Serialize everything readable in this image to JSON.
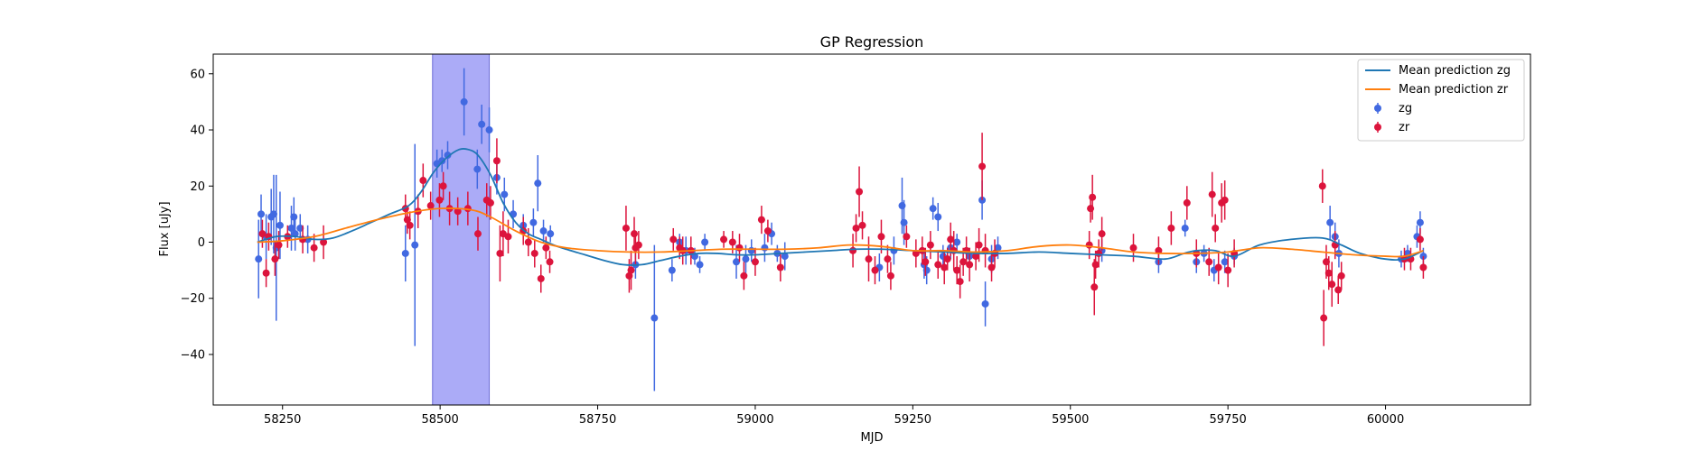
{
  "chart_data": {
    "type": "scatter",
    "title": "GP Regression",
    "xlabel": "MJD",
    "ylabel": "Flux [uJy]",
    "xlim": [
      58140,
      60230
    ],
    "ylim": [
      -58,
      67
    ],
    "xticks": [
      58250,
      58500,
      58750,
      59000,
      59250,
      59500,
      59750,
      60000
    ],
    "yticks": [
      -40,
      -20,
      0,
      20,
      40,
      60
    ],
    "legend_position": "top-right",
    "shaded_region": {
      "x0": 58488,
      "x1": 58578,
      "color": "#a7a7f7"
    },
    "series": [
      {
        "name": "Mean prediction zg",
        "kind": "line",
        "color": "#1f77b4",
        "x": [
          58210,
          58240,
          58270,
          58300,
          58330,
          58360,
          58390,
          58420,
          58450,
          58470,
          58490,
          58510,
          58530,
          58545,
          58560,
          58580,
          58600,
          58620,
          58640,
          58660,
          58680,
          58700,
          58730,
          58760,
          58790,
          58820,
          58850,
          58880,
          58910,
          58940,
          58970,
          59000,
          59040,
          59080,
          59120,
          59160,
          59200,
          59250,
          59300,
          59350,
          59400,
          59450,
          59500,
          59550,
          59600,
          59650,
          59680,
          59700,
          59730,
          59760,
          59800,
          59850,
          59900,
          59930,
          59960,
          60000,
          60030,
          60060
        ],
        "y": [
          0,
          2,
          2,
          1,
          1.5,
          4,
          7,
          10,
          13,
          18,
          25,
          30,
          33,
          33,
          31,
          24,
          14,
          7,
          3,
          1,
          -1,
          -2.5,
          -4.5,
          -6.5,
          -8,
          -8,
          -6.5,
          -5,
          -4,
          -4,
          -4.5,
          -4.5,
          -4,
          -3.5,
          -3,
          -2.5,
          -2.5,
          -3,
          -3.5,
          -4,
          -4,
          -3.5,
          -4,
          -4.5,
          -5,
          -6,
          -4,
          -3,
          -3,
          -5,
          -1,
          1,
          1.5,
          -1,
          -4,
          -6,
          -6,
          -3
        ]
      },
      {
        "name": "Mean prediction zr",
        "kind": "line",
        "color": "#ff7f0e",
        "x": [
          58210,
          58250,
          58300,
          58350,
          58400,
          58450,
          58500,
          58550,
          58580,
          58620,
          58660,
          58700,
          58750,
          58800,
          58850,
          58900,
          58950,
          59000,
          59050,
          59100,
          59150,
          59200,
          59250,
          59300,
          59350,
          59400,
          59450,
          59500,
          59550,
          59600,
          59650,
          59700,
          59750,
          59800,
          59850,
          59900,
          59950,
          60000,
          60030,
          60060
        ],
        "y": [
          0,
          0.5,
          2,
          5,
          8,
          10.5,
          12,
          11.5,
          9,
          4,
          0,
          -2,
          -3,
          -3.5,
          -3.5,
          -3,
          -2.5,
          -2.5,
          -2.5,
          -2,
          -1,
          -1.5,
          -3,
          -3,
          -3.5,
          -3,
          -1.5,
          -1,
          -2,
          -3.5,
          -4,
          -4,
          -3.5,
          -2,
          -2.5,
          -3.5,
          -4.5,
          -5,
          -5,
          -3
        ]
      },
      {
        "name": "zg",
        "kind": "errorbar",
        "color": "#4169e1",
        "points": [
          [
            58212,
            -6,
            14
          ],
          [
            58216,
            10,
            7
          ],
          [
            58224,
            2,
            8
          ],
          [
            58232,
            9,
            10
          ],
          [
            58236,
            10,
            14
          ],
          [
            58240,
            -2,
            26
          ],
          [
            58246,
            6,
            12
          ],
          [
            58264,
            5,
            8
          ],
          [
            58268,
            9,
            7
          ],
          [
            58270,
            3,
            6
          ],
          [
            58278,
            5,
            5
          ],
          [
            58290,
            1,
            5
          ],
          [
            58445,
            -4,
            10
          ],
          [
            58460,
            -1,
            36
          ],
          [
            58495,
            28,
            5
          ],
          [
            58503,
            29,
            4
          ],
          [
            58512,
            31,
            5
          ],
          [
            58538,
            50,
            12
          ],
          [
            58559,
            26,
            7
          ],
          [
            58566,
            42,
            7
          ],
          [
            58578,
            40,
            8
          ],
          [
            58590,
            23,
            6
          ],
          [
            58602,
            17,
            6
          ],
          [
            58616,
            10,
            5
          ],
          [
            58632,
            6,
            4
          ],
          [
            58648,
            7,
            5
          ],
          [
            58655,
            21,
            10
          ],
          [
            58664,
            4,
            4
          ],
          [
            58675,
            3,
            3
          ],
          [
            58810,
            -8,
            5
          ],
          [
            58840,
            -27,
            26
          ],
          [
            58868,
            -10,
            4
          ],
          [
            58880,
            0,
            3
          ],
          [
            58890,
            -3,
            5
          ],
          [
            58904,
            -5,
            3
          ],
          [
            58912,
            -8,
            3
          ],
          [
            58920,
            0,
            3
          ],
          [
            58970,
            -7,
            6
          ],
          [
            58985,
            -6,
            5
          ],
          [
            58994,
            -3,
            4
          ],
          [
            59015,
            -2,
            5
          ],
          [
            59026,
            3,
            4
          ],
          [
            59035,
            -4,
            3
          ],
          [
            59047,
            -5,
            5
          ],
          [
            59197,
            -9,
            5
          ],
          [
            59220,
            -3,
            5
          ],
          [
            59233,
            13,
            10
          ],
          [
            59236,
            7,
            8
          ],
          [
            59268,
            -8,
            5
          ],
          [
            59272,
            -10,
            5
          ],
          [
            59282,
            12,
            4
          ],
          [
            59290,
            9,
            5
          ],
          [
            59298,
            -5,
            4
          ],
          [
            59310,
            -2,
            4
          ],
          [
            59320,
            0,
            3
          ],
          [
            59340,
            -5,
            3
          ],
          [
            59360,
            15,
            7
          ],
          [
            59365,
            -22,
            8
          ],
          [
            59375,
            -6,
            5
          ],
          [
            59385,
            -2,
            4
          ],
          [
            59550,
            -3,
            4
          ],
          [
            59640,
            -7,
            4
          ],
          [
            59682,
            5,
            3
          ],
          [
            59700,
            -7,
            4
          ],
          [
            59712,
            -4,
            3
          ],
          [
            59728,
            -10,
            4
          ],
          [
            59745,
            -7,
            4
          ],
          [
            59760,
            -5,
            3
          ],
          [
            59912,
            7,
            6
          ],
          [
            59920,
            2,
            5
          ],
          [
            59926,
            -4,
            5
          ],
          [
            60025,
            -6,
            3
          ],
          [
            60035,
            -4,
            3
          ],
          [
            60050,
            2,
            4
          ],
          [
            60055,
            7,
            4
          ],
          [
            60060,
            -5,
            3
          ]
        ]
      },
      {
        "name": "zr",
        "kind": "errorbar",
        "color": "#dc143c",
        "points": [
          [
            58218,
            3,
            5
          ],
          [
            58224,
            -11,
            5
          ],
          [
            58228,
            2,
            5
          ],
          [
            58238,
            -6,
            6
          ],
          [
            58244,
            -1,
            5
          ],
          [
            58258,
            2,
            4
          ],
          [
            58282,
            1,
            5
          ],
          [
            58300,
            -2,
            5
          ],
          [
            58315,
            0,
            6
          ],
          [
            58445,
            12,
            5
          ],
          [
            58448,
            8,
            5
          ],
          [
            58452,
            6,
            5
          ],
          [
            58465,
            11,
            6
          ],
          [
            58473,
            22,
            6
          ],
          [
            58485,
            13,
            5
          ],
          [
            58499,
            15,
            6
          ],
          [
            58505,
            20,
            5
          ],
          [
            58515,
            12,
            6
          ],
          [
            58528,
            11,
            5
          ],
          [
            58544,
            12,
            6
          ],
          [
            58560,
            3,
            6
          ],
          [
            58574,
            15,
            6
          ],
          [
            58580,
            14,
            6
          ],
          [
            58590,
            29,
            8
          ],
          [
            58595,
            -4,
            10
          ],
          [
            58600,
            3,
            8
          ],
          [
            58608,
            2,
            6
          ],
          [
            58632,
            4,
            5
          ],
          [
            58640,
            0,
            5
          ],
          [
            58650,
            -4,
            5
          ],
          [
            58660,
            -13,
            5
          ],
          [
            58668,
            -2,
            4
          ],
          [
            58674,
            -7,
            4
          ],
          [
            58795,
            5,
            8
          ],
          [
            58800,
            -12,
            6
          ],
          [
            58803,
            -10,
            7
          ],
          [
            58808,
            3,
            6
          ],
          [
            58810,
            -2,
            6
          ],
          [
            58815,
            -1,
            5
          ],
          [
            58870,
            1,
            4
          ],
          [
            58880,
            -2,
            4
          ],
          [
            58885,
            -3,
            5
          ],
          [
            58898,
            -3,
            5
          ],
          [
            58950,
            1,
            3
          ],
          [
            58964,
            0,
            4
          ],
          [
            58975,
            -2,
            5
          ],
          [
            58982,
            -12,
            5
          ],
          [
            59000,
            -7,
            5
          ],
          [
            59010,
            8,
            5
          ],
          [
            59020,
            4,
            4
          ],
          [
            59040,
            -9,
            5
          ],
          [
            59155,
            -3,
            6
          ],
          [
            59160,
            5,
            5
          ],
          [
            59165,
            18,
            9
          ],
          [
            59170,
            6,
            5
          ],
          [
            59180,
            -6,
            8
          ],
          [
            59190,
            -10,
            5
          ],
          [
            59200,
            2,
            6
          ],
          [
            59210,
            -6,
            5
          ],
          [
            59215,
            -12,
            5
          ],
          [
            59240,
            2,
            4
          ],
          [
            59255,
            -4,
            5
          ],
          [
            59265,
            -3,
            5
          ],
          [
            59270,
            -7,
            5
          ],
          [
            59278,
            -1,
            5
          ],
          [
            59290,
            -8,
            5
          ],
          [
            59300,
            -9,
            6
          ],
          [
            59305,
            -6,
            4
          ],
          [
            59310,
            1,
            6
          ],
          [
            59315,
            -3,
            7
          ],
          [
            59320,
            -10,
            5
          ],
          [
            59325,
            -14,
            6
          ],
          [
            59330,
            -7,
            5
          ],
          [
            59335,
            -3,
            5
          ],
          [
            59340,
            -8,
            6
          ],
          [
            59350,
            -5,
            5
          ],
          [
            59355,
            -1,
            6
          ],
          [
            59360,
            27,
            12
          ],
          [
            59365,
            -3,
            6
          ],
          [
            59375,
            -9,
            5
          ],
          [
            59380,
            -4,
            5
          ],
          [
            59530,
            -1,
            5
          ],
          [
            59532,
            12,
            5
          ],
          [
            59535,
            16,
            8
          ],
          [
            59538,
            -16,
            10
          ],
          [
            59540,
            -8,
            5
          ],
          [
            59545,
            -4,
            5
          ],
          [
            59550,
            3,
            6
          ],
          [
            59600,
            -2,
            5
          ],
          [
            59640,
            -3,
            5
          ],
          [
            59660,
            5,
            6
          ],
          [
            59685,
            14,
            6
          ],
          [
            59700,
            -4,
            5
          ],
          [
            59720,
            -7,
            5
          ],
          [
            59725,
            17,
            8
          ],
          [
            59730,
            5,
            5
          ],
          [
            59735,
            -9,
            6
          ],
          [
            59740,
            14,
            7
          ],
          [
            59745,
            15,
            7
          ],
          [
            59750,
            -10,
            6
          ],
          [
            59760,
            -4,
            5
          ],
          [
            59900,
            20,
            6
          ],
          [
            59902,
            -27,
            10
          ],
          [
            59906,
            -7,
            6
          ],
          [
            59910,
            -11,
            6
          ],
          [
            59915,
            -15,
            8
          ],
          [
            59920,
            -1,
            5
          ],
          [
            59925,
            -17,
            5
          ],
          [
            59930,
            -12,
            5
          ],
          [
            60030,
            -6,
            4
          ],
          [
            60040,
            -6,
            4
          ],
          [
            60055,
            1,
            4
          ],
          [
            60060,
            -9,
            4
          ]
        ]
      }
    ]
  }
}
